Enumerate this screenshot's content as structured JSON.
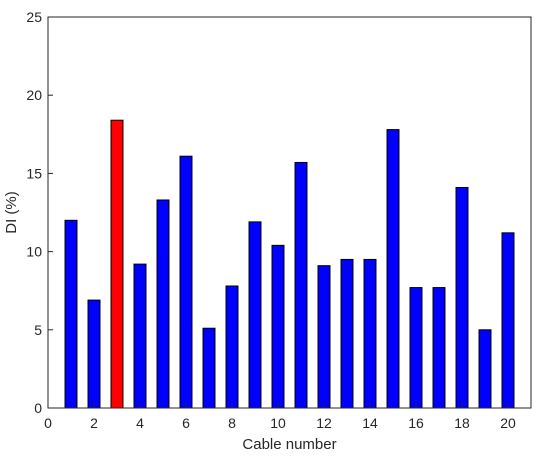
{
  "chart_data": {
    "type": "bar",
    "title": "",
    "xlabel": "Cable number",
    "ylabel": "DI (%)",
    "xlim": [
      0,
      21
    ],
    "ylim": [
      0,
      25
    ],
    "xticks": [
      0,
      2,
      4,
      6,
      8,
      10,
      12,
      14,
      16,
      18,
      20
    ],
    "yticks": [
      0,
      5,
      10,
      15,
      20,
      25
    ],
    "grid": false,
    "x": [
      1,
      2,
      3,
      4,
      5,
      6,
      7,
      8,
      9,
      10,
      11,
      12,
      13,
      14,
      15,
      16,
      17,
      18,
      19,
      20
    ],
    "values": [
      12.0,
      6.9,
      18.4,
      9.2,
      13.3,
      16.1,
      5.1,
      7.8,
      11.9,
      10.4,
      15.7,
      9.1,
      9.5,
      9.5,
      17.8,
      7.7,
      7.7,
      14.1,
      5.0,
      11.2
    ],
    "colors": [
      "#0000FF",
      "#0000FF",
      "#FF0000",
      "#0000FF",
      "#0000FF",
      "#0000FF",
      "#0000FF",
      "#0000FF",
      "#0000FF",
      "#0000FF",
      "#0000FF",
      "#0000FF",
      "#0000FF",
      "#0000FF",
      "#0000FF",
      "#0000FF",
      "#0000FF",
      "#0000FF",
      "#0000FF",
      "#0000FF"
    ],
    "edge_color": "#000000"
  }
}
